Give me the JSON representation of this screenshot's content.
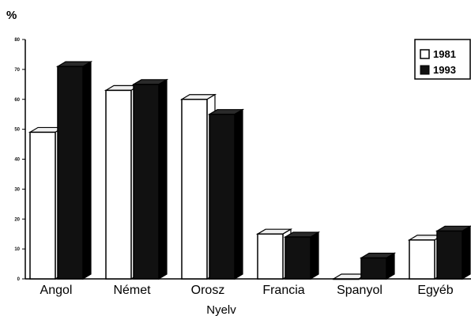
{
  "chart_data": {
    "type": "bar",
    "style": "3d-grouped",
    "categories": [
      "Angol",
      "Német",
      "Orosz",
      "Francia",
      "Spanyol",
      "Egyéb"
    ],
    "series": [
      {
        "name": "1981",
        "values": [
          49,
          63,
          60,
          15,
          0,
          13
        ],
        "color": "#ffffff"
      },
      {
        "name": "1993",
        "values": [
          71,
          65,
          55,
          14,
          7,
          16
        ],
        "color": "#111111"
      }
    ],
    "ylim": [
      0,
      80
    ],
    "yticks": [
      0,
      10,
      20,
      30,
      40,
      50,
      60,
      70,
      80
    ],
    "xlabel": "Nyelv",
    "ylabel": "%",
    "grid": false,
    "legend_position": "top-right"
  }
}
